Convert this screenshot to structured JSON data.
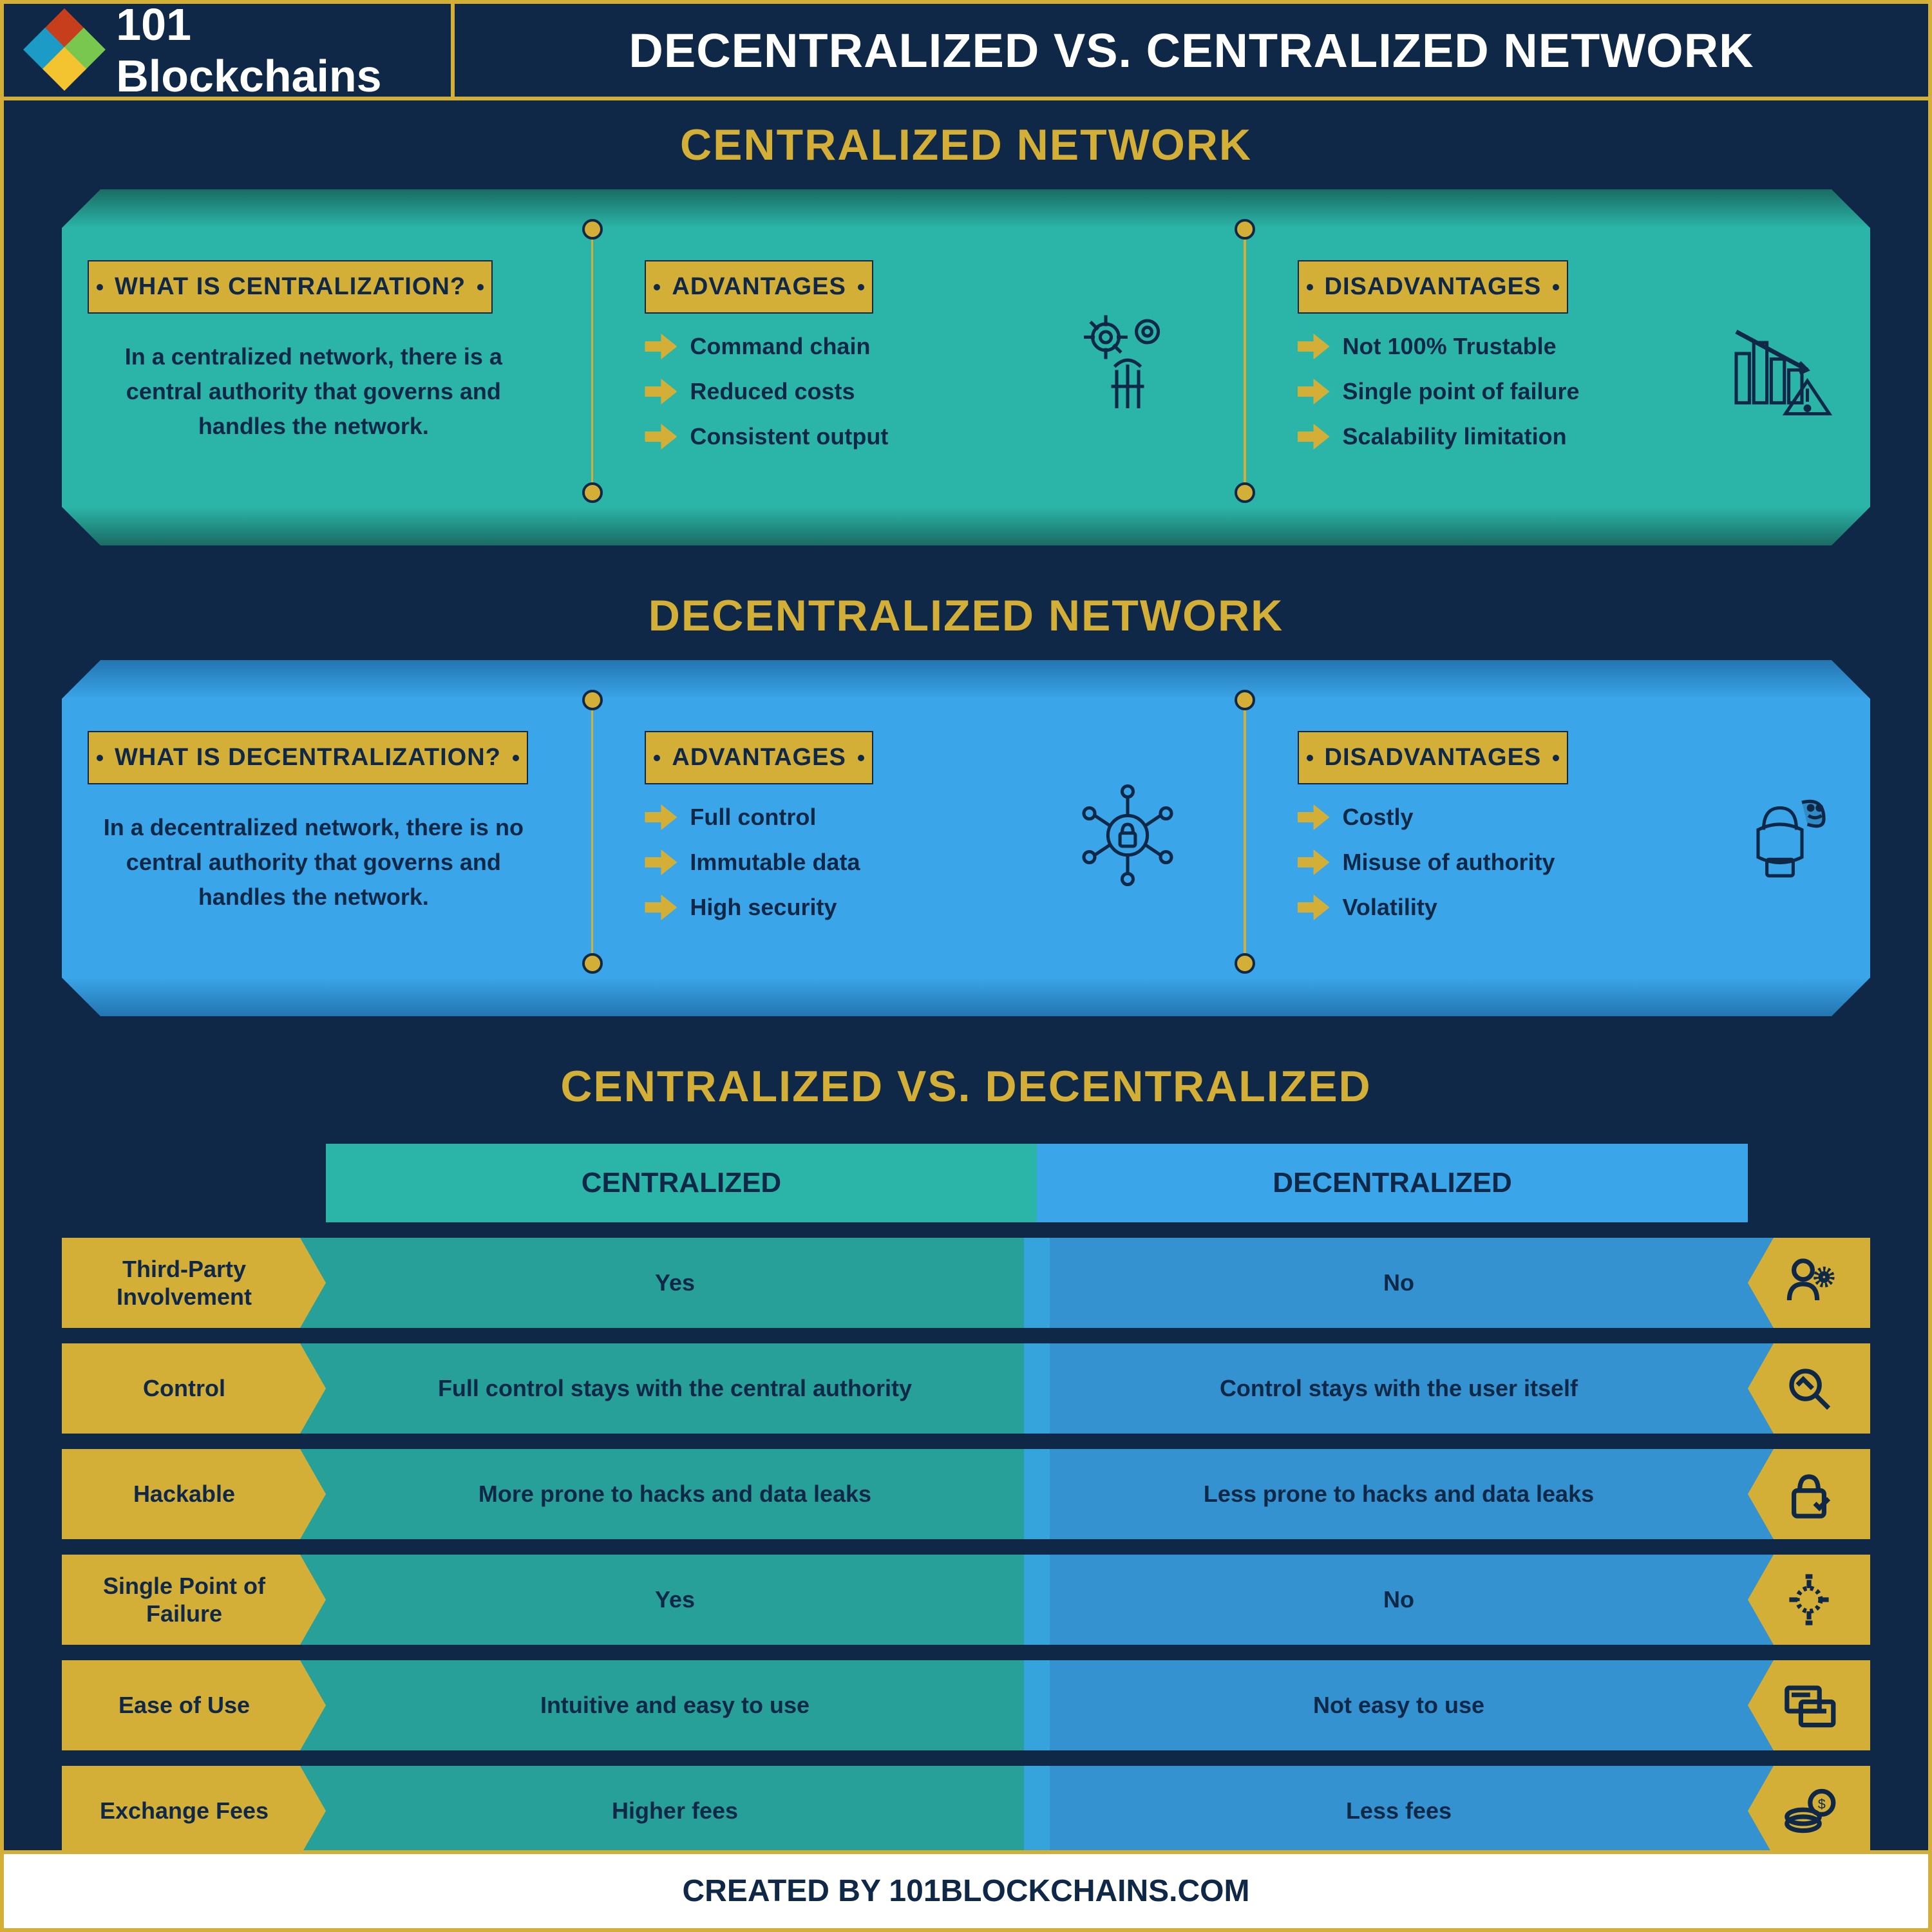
{
  "header": {
    "logo_text": "101 Blockchains",
    "main_title": "DECENTRALIZED VS. CENTRALIZED NETWORK"
  },
  "colors": {
    "bg": "#0f2847",
    "gold": "#d4af37",
    "teal": "#2bb5a8",
    "blue": "#3aa5e8",
    "white": "#ffffff"
  },
  "centralized": {
    "section_title": "CENTRALIZED NETWORK",
    "what_label": "WHAT IS CENTRALIZATION?",
    "what_text": "In a centralized network, there is a central authority that governs and handles the network.",
    "adv_label": "ADVANTAGES",
    "advantages": [
      "Command chain",
      "Reduced costs",
      "Consistent output"
    ],
    "dis_label": "DISADVANTAGES",
    "disadvantages": [
      "Not 100% Trustable",
      "Single point of failure",
      "Scalability limitation"
    ]
  },
  "decentralized": {
    "section_title": "DECENTRALIZED NETWORK",
    "what_label": "WHAT IS DECENTRALIZATION?",
    "what_text": "In a decentralized network, there is no central authority that governs and handles the network.",
    "adv_label": "ADVANTAGES",
    "advantages": [
      "Full control",
      "Immutable data",
      "High security"
    ],
    "dis_label": "DISADVANTAGES",
    "disadvantages": [
      "Costly",
      "Misuse of authority",
      "Volatility"
    ]
  },
  "comparison": {
    "title": "CENTRALIZED VS. DECENTRALIZED",
    "col_cent": "CENTRALIZED",
    "col_dec": "DECENTRALIZED",
    "rows": [
      {
        "label": "Third-Party Involvement",
        "cent": "Yes",
        "dec": "No"
      },
      {
        "label": "Control",
        "cent": "Full control stays with the central authority",
        "dec": "Control stays with the user itself"
      },
      {
        "label": "Hackable",
        "cent": "More prone to hacks and data leaks",
        "dec": "Less prone to hacks and data leaks"
      },
      {
        "label": "Single Point of Failure",
        "cent": "Yes",
        "dec": "No"
      },
      {
        "label": "Ease of Use",
        "cent": "Intuitive and easy to use",
        "dec": "Not easy to use"
      },
      {
        "label": "Exchange Fees",
        "cent": "Higher fees",
        "dec": "Less fees"
      }
    ]
  },
  "footer": "CREATED BY 101BLOCKCHAINS.COM"
}
